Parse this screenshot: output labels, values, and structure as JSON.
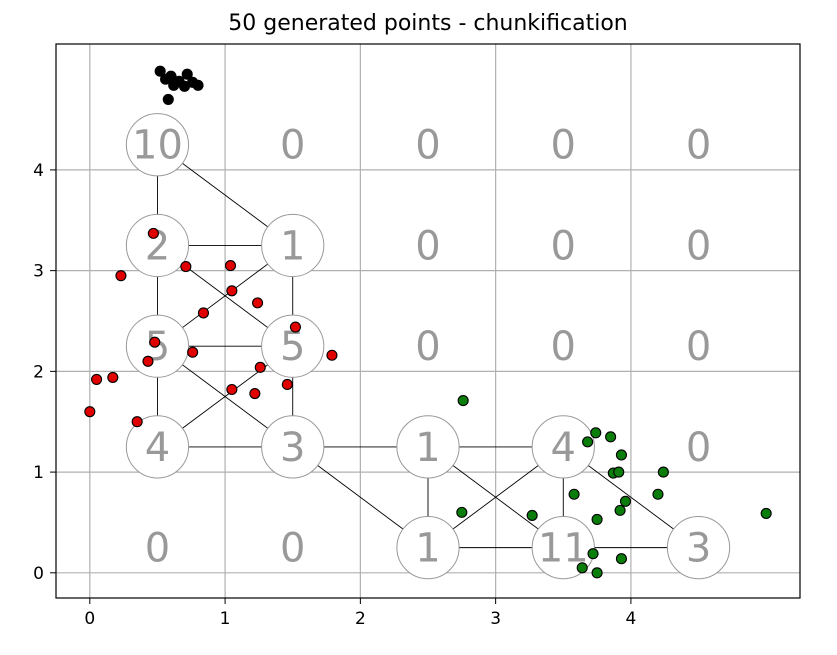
{
  "chart_data": {
    "type": "scatter",
    "title": "50 generated points - chunkification",
    "xlabel": "",
    "ylabel": "",
    "xlim": [
      -0.25,
      5.25
    ],
    "ylim": [
      -0.25,
      5.25
    ],
    "x_ticks": [
      0,
      1,
      2,
      3,
      4
    ],
    "y_ticks": [
      0,
      1,
      2,
      3,
      4
    ],
    "grid_lines": [
      0,
      1,
      2,
      3,
      4
    ],
    "grid": true,
    "colors": {
      "black": "#000000",
      "red": "#e00000",
      "green": "#0a7d0a",
      "grid": "#b0b0b0",
      "chunk_text": "#999999",
      "chunk_edge": "#999999"
    },
    "series": [
      {
        "color": "black",
        "points": [
          [
            0.52,
            4.98
          ],
          [
            0.56,
            4.9
          ],
          [
            0.6,
            4.93
          ],
          [
            0.62,
            4.84
          ],
          [
            0.66,
            4.88
          ],
          [
            0.7,
            4.83
          ],
          [
            0.72,
            4.95
          ],
          [
            0.76,
            4.87
          ],
          [
            0.8,
            4.84
          ],
          [
            0.58,
            4.7
          ]
        ]
      },
      {
        "color": "red",
        "points": [
          [
            0.47,
            3.37
          ],
          [
            0.23,
            2.95
          ],
          [
            0.71,
            3.04
          ],
          [
            1.04,
            3.05
          ],
          [
            1.05,
            2.8
          ],
          [
            1.24,
            2.68
          ],
          [
            0.84,
            2.58
          ],
          [
            1.52,
            2.44
          ],
          [
            0.48,
            2.29
          ],
          [
            0.76,
            2.19
          ],
          [
            1.79,
            2.16
          ],
          [
            0.43,
            2.1
          ],
          [
            1.26,
            2.04
          ],
          [
            0.05,
            1.92
          ],
          [
            0.17,
            1.94
          ],
          [
            1.05,
            1.82
          ],
          [
            1.22,
            1.78
          ],
          [
            1.46,
            1.87
          ],
          [
            0.35,
            1.5
          ],
          [
            0.0,
            1.6
          ]
        ]
      },
      {
        "color": "green",
        "points": [
          [
            2.76,
            1.71
          ],
          [
            3.74,
            1.39
          ],
          [
            3.85,
            1.35
          ],
          [
            3.68,
            1.3
          ],
          [
            3.93,
            1.17
          ],
          [
            4.24,
            1.0
          ],
          [
            3.87,
            0.99
          ],
          [
            3.91,
            1.0
          ],
          [
            3.58,
            0.78
          ],
          [
            4.2,
            0.78
          ],
          [
            3.96,
            0.71
          ],
          [
            3.92,
            0.62
          ],
          [
            2.75,
            0.6
          ],
          [
            3.27,
            0.57
          ],
          [
            3.75,
            0.53
          ],
          [
            5.0,
            0.59
          ],
          [
            3.72,
            0.19
          ],
          [
            3.93,
            0.14
          ],
          [
            3.64,
            0.05
          ],
          [
            3.75,
            0.0
          ]
        ]
      }
    ],
    "chunks": [
      {
        "label": "10",
        "x": 0.5,
        "y": 4.25
      },
      {
        "label": "0",
        "x": 1.5,
        "y": 4.25
      },
      {
        "label": "0",
        "x": 2.5,
        "y": 4.25
      },
      {
        "label": "0",
        "x": 3.5,
        "y": 4.25
      },
      {
        "label": "0",
        "x": 4.5,
        "y": 4.25
      },
      {
        "label": "2",
        "x": 0.5,
        "y": 3.25
      },
      {
        "label": "1",
        "x": 1.5,
        "y": 3.25
      },
      {
        "label": "0",
        "x": 2.5,
        "y": 3.25
      },
      {
        "label": "0",
        "x": 3.5,
        "y": 3.25
      },
      {
        "label": "0",
        "x": 4.5,
        "y": 3.25
      },
      {
        "label": "5",
        "x": 0.5,
        "y": 2.25
      },
      {
        "label": "5",
        "x": 1.5,
        "y": 2.25
      },
      {
        "label": "0",
        "x": 2.5,
        "y": 2.25
      },
      {
        "label": "0",
        "x": 3.5,
        "y": 2.25
      },
      {
        "label": "0",
        "x": 4.5,
        "y": 2.25
      },
      {
        "label": "4",
        "x": 0.5,
        "y": 1.25
      },
      {
        "label": "3",
        "x": 1.5,
        "y": 1.25
      },
      {
        "label": "1",
        "x": 2.5,
        "y": 1.25
      },
      {
        "label": "4",
        "x": 3.5,
        "y": 1.25
      },
      {
        "label": "0",
        "x": 4.5,
        "y": 1.25
      },
      {
        "label": "0",
        "x": 0.5,
        "y": 0.25
      },
      {
        "label": "0",
        "x": 1.5,
        "y": 0.25
      },
      {
        "label": "1",
        "x": 2.5,
        "y": 0.25
      },
      {
        "label": "11",
        "x": 3.5,
        "y": 0.25
      },
      {
        "label": "3",
        "x": 4.5,
        "y": 0.25
      }
    ],
    "edges": [
      [
        [
          0.5,
          4.25
        ],
        [
          0.5,
          3.25
        ]
      ],
      [
        [
          0.5,
          4.25
        ],
        [
          1.5,
          3.25
        ]
      ],
      [
        [
          0.5,
          3.25
        ],
        [
          1.5,
          3.25
        ]
      ],
      [
        [
          0.5,
          3.25
        ],
        [
          0.5,
          2.25
        ]
      ],
      [
        [
          0.5,
          3.25
        ],
        [
          1.5,
          2.25
        ]
      ],
      [
        [
          1.5,
          3.25
        ],
        [
          1.5,
          2.25
        ]
      ],
      [
        [
          1.5,
          3.25
        ],
        [
          0.5,
          2.25
        ]
      ],
      [
        [
          0.5,
          2.25
        ],
        [
          1.5,
          2.25
        ]
      ],
      [
        [
          0.5,
          2.25
        ],
        [
          0.5,
          1.25
        ]
      ],
      [
        [
          0.5,
          2.25
        ],
        [
          1.5,
          1.25
        ]
      ],
      [
        [
          1.5,
          2.25
        ],
        [
          1.5,
          1.25
        ]
      ],
      [
        [
          1.5,
          2.25
        ],
        [
          0.5,
          1.25
        ]
      ],
      [
        [
          0.5,
          1.25
        ],
        [
          1.5,
          1.25
        ]
      ],
      [
        [
          1.5,
          1.25
        ],
        [
          2.5,
          1.25
        ]
      ],
      [
        [
          1.5,
          1.25
        ],
        [
          2.5,
          0.25
        ]
      ],
      [
        [
          2.5,
          1.25
        ],
        [
          3.5,
          1.25
        ]
      ],
      [
        [
          2.5,
          1.25
        ],
        [
          2.5,
          0.25
        ]
      ],
      [
        [
          2.5,
          1.25
        ],
        [
          3.5,
          0.25
        ]
      ],
      [
        [
          3.5,
          1.25
        ],
        [
          2.5,
          0.25
        ]
      ],
      [
        [
          3.5,
          1.25
        ],
        [
          3.5,
          0.25
        ]
      ],
      [
        [
          3.5,
          1.25
        ],
        [
          4.5,
          0.25
        ]
      ],
      [
        [
          2.5,
          0.25
        ],
        [
          3.5,
          0.25
        ]
      ],
      [
        [
          3.5,
          0.25
        ],
        [
          4.5,
          0.25
        ]
      ]
    ]
  }
}
